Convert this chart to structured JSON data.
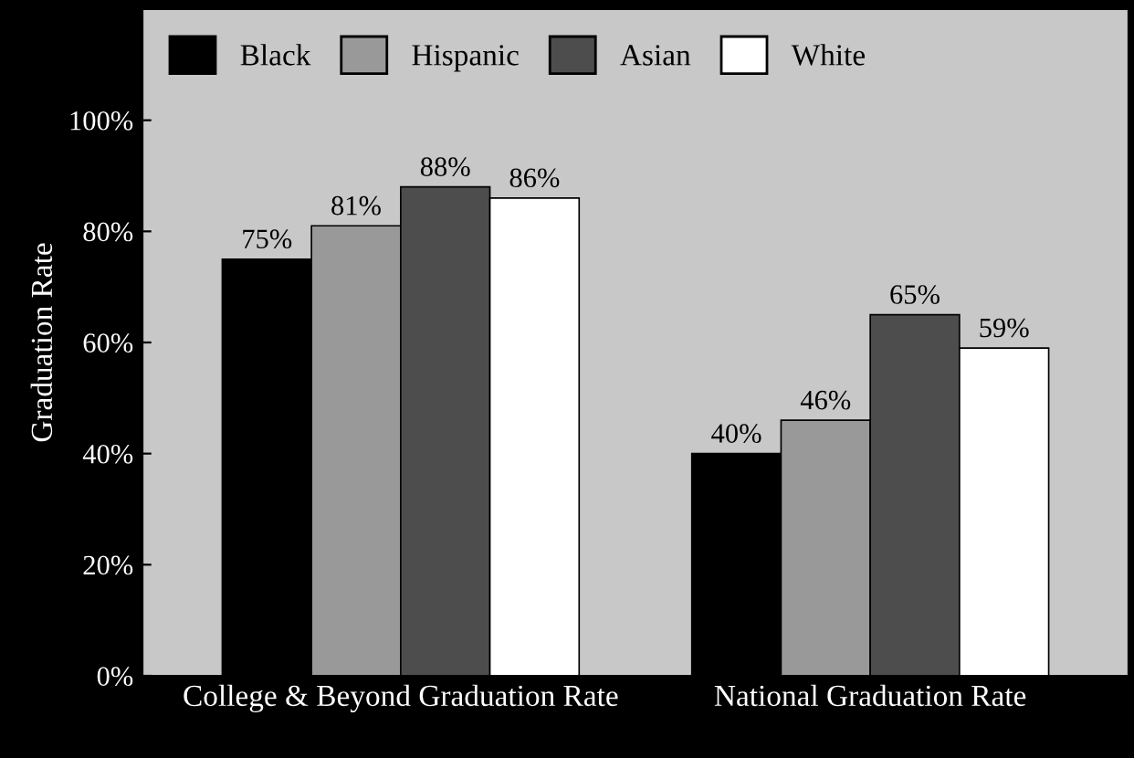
{
  "chart_data": {
    "type": "bar",
    "ylabel": "Graduation Rate",
    "categories": [
      "College & Beyond Graduation Rate",
      "National Graduation Rate"
    ],
    "series": [
      {
        "name": "Black",
        "color": "#000000",
        "values": [
          75,
          40
        ],
        "value_labels": [
          "75%",
          "40%"
        ]
      },
      {
        "name": "Hispanic",
        "color": "#999999",
        "values": [
          81,
          46
        ],
        "value_labels": [
          "81%",
          "46%"
        ]
      },
      {
        "name": "Asian",
        "color": "#4d4d4d",
        "values": [
          88,
          65
        ],
        "value_labels": [
          "88%",
          "65%"
        ]
      },
      {
        "name": "White",
        "color": "#ffffff",
        "values": [
          86,
          59
        ],
        "value_labels": [
          "86%",
          "59%"
        ]
      }
    ],
    "ylim": [
      0,
      120
    ],
    "yticks": [
      {
        "value": 0,
        "label": "0%"
      },
      {
        "value": 20,
        "label": "20%"
      },
      {
        "value": 40,
        "label": "40%"
      },
      {
        "value": 60,
        "label": "60%"
      },
      {
        "value": 80,
        "label": "80%"
      },
      {
        "value": 100,
        "label": "100%"
      }
    ],
    "grid": false,
    "legend": "top left"
  }
}
